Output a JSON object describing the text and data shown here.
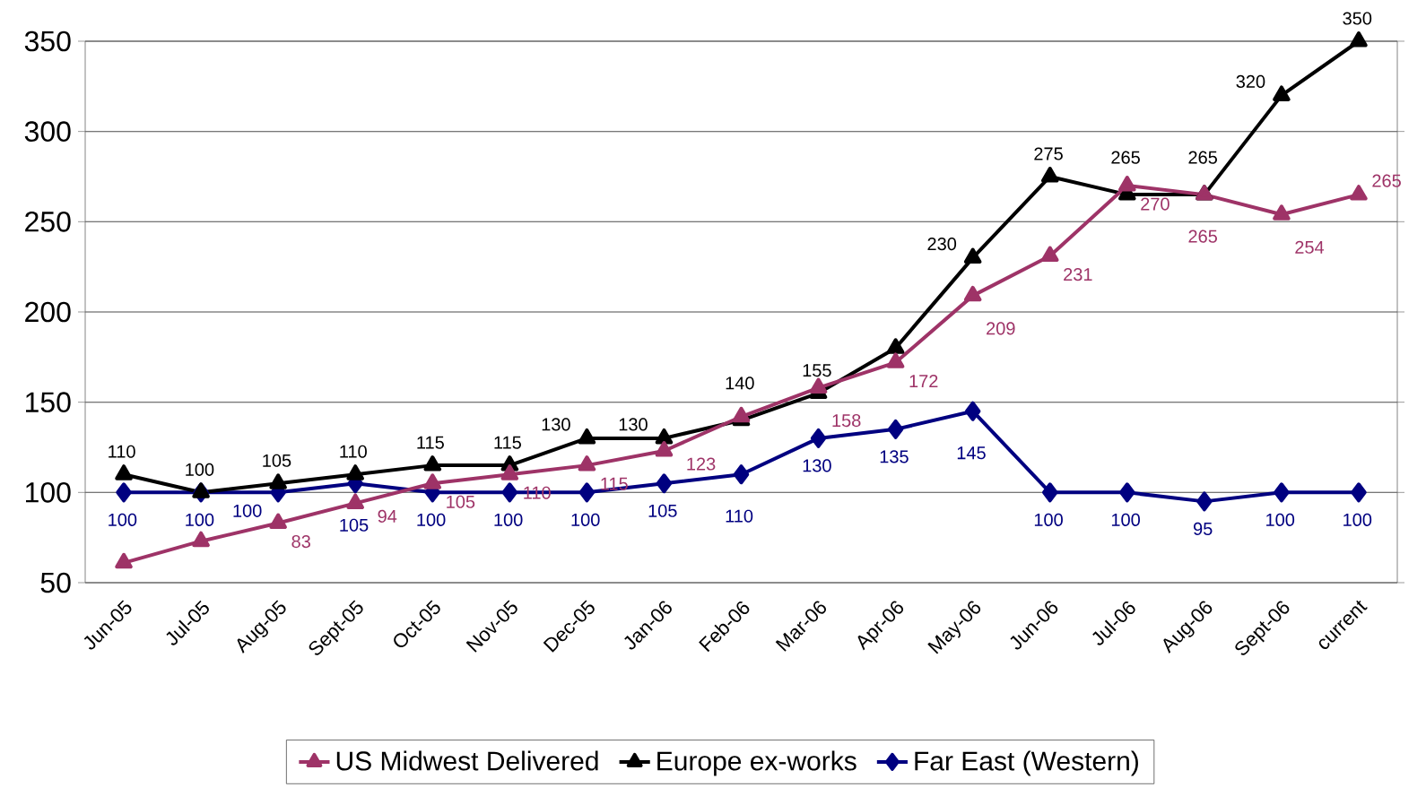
{
  "chart_data": {
    "type": "line",
    "categories": [
      "Jun-05",
      "Jul-05",
      "Aug-05",
      "Sept-05",
      "Oct-05",
      "Nov-05",
      "Dec-05",
      "Jan-06",
      "Feb-06",
      "Mar-06",
      "Apr-06",
      "May-06",
      "Jun-06",
      "Jul-06",
      "Aug-06",
      "Sept-06",
      "current"
    ],
    "series": [
      {
        "name": "US Midwest Delivered",
        "color": "#9e3367",
        "marker": "triangle",
        "values": [
          61,
          73,
          83,
          94,
          105,
          110,
          115,
          123,
          142,
          158,
          172,
          209,
          231,
          270,
          265,
          254,
          265
        ],
        "value_labels": [
          null,
          null,
          "83",
          "94",
          "105",
          "110",
          "115",
          "123",
          null,
          "158",
          "172",
          "209",
          "231",
          "270",
          "265",
          "254",
          "265"
        ]
      },
      {
        "name": "Europe ex-works",
        "color": "#000000",
        "marker": "triangle",
        "values": [
          110,
          100,
          105,
          110,
          115,
          115,
          130,
          130,
          140,
          155,
          180,
          230,
          275,
          265,
          265,
          320,
          350
        ],
        "value_labels": [
          "110",
          "100",
          "105",
          "110",
          "115",
          "115",
          "130",
          "130",
          "140",
          "155",
          null,
          "230",
          "275",
          "265",
          "265",
          "320",
          "350"
        ]
      },
      {
        "name": "Far East (Western)",
        "color": "#000080",
        "marker": "diamond",
        "values": [
          100,
          100,
          100,
          105,
          100,
          100,
          100,
          105,
          110,
          130,
          135,
          145,
          100,
          100,
          95,
          100,
          100
        ],
        "value_labels": [
          "100",
          "100",
          "100",
          "105",
          "100",
          "100",
          "100",
          "105",
          "110",
          "130",
          "135",
          "145",
          "100",
          "100",
          "95",
          "100",
          "100"
        ]
      }
    ],
    "ylim": [
      50,
      350
    ],
    "yticks": [
      50,
      100,
      150,
      200,
      250,
      300,
      350
    ],
    "grid": "y",
    "legend": "bottom",
    "line_style": "solid"
  }
}
